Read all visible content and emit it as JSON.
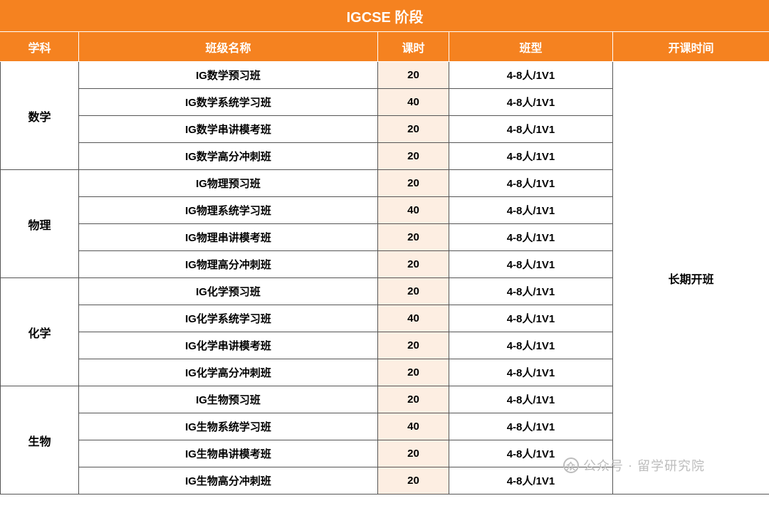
{
  "table": {
    "title": "IGCSE 阶段",
    "headers": {
      "subject": "学科",
      "className": "班级名称",
      "hours": "课时",
      "type": "班型",
      "schedule": "开课时间"
    },
    "columnWidths": {
      "subject": 110,
      "className": 420,
      "hours": 100,
      "type": 230,
      "schedule": 220
    },
    "colors": {
      "headerBg": "#f58220",
      "headerText": "#ffffff",
      "hoursBg": "#fdeee2",
      "border": "#555555",
      "background": "#ffffff"
    },
    "schedule": "长期开班",
    "subjects": [
      {
        "name": "数学",
        "rows": [
          {
            "className": "IG数学预习班",
            "hours": "20",
            "type": "4-8人/1V1"
          },
          {
            "className": "IG数学系统学习班",
            "hours": "40",
            "type": "4-8人/1V1"
          },
          {
            "className": "IG数学串讲模考班",
            "hours": "20",
            "type": "4-8人/1V1"
          },
          {
            "className": "IG数学高分冲刺班",
            "hours": "20",
            "type": "4-8人/1V1"
          }
        ]
      },
      {
        "name": "物理",
        "rows": [
          {
            "className": "IG物理预习班",
            "hours": "20",
            "type": "4-8人/1V1"
          },
          {
            "className": "IG物理系统学习班",
            "hours": "40",
            "type": "4-8人/1V1"
          },
          {
            "className": "IG物理串讲模考班",
            "hours": "20",
            "type": "4-8人/1V1"
          },
          {
            "className": "IG物理高分冲刺班",
            "hours": "20",
            "type": "4-8人/1V1"
          }
        ]
      },
      {
        "name": "化学",
        "rows": [
          {
            "className": "IG化学预习班",
            "hours": "20",
            "type": "4-8人/1V1"
          },
          {
            "className": "IG化学系统学习班",
            "hours": "40",
            "type": "4-8人/1V1"
          },
          {
            "className": "IG化学串讲模考班",
            "hours": "20",
            "type": "4-8人/1V1"
          },
          {
            "className": "IG化学高分冲刺班",
            "hours": "20",
            "type": "4-8人/1V1"
          }
        ]
      },
      {
        "name": "生物",
        "rows": [
          {
            "className": "IG生物预习班",
            "hours": "20",
            "type": "4-8人/1V1"
          },
          {
            "className": "IG生物系统学习班",
            "hours": "40",
            "type": "4-8人/1V1"
          },
          {
            "className": "IG生物串讲模考班",
            "hours": "20",
            "type": "4-8人/1V1"
          },
          {
            "className": "IG生物高分冲刺班",
            "hours": "20",
            "type": "4-8人/1V1"
          }
        ]
      }
    ]
  },
  "watermark": {
    "prefix": "公众号",
    "separator": "·",
    "name": "留学研究院",
    "iconGlyph": "众",
    "color": "#bdbdbd"
  }
}
